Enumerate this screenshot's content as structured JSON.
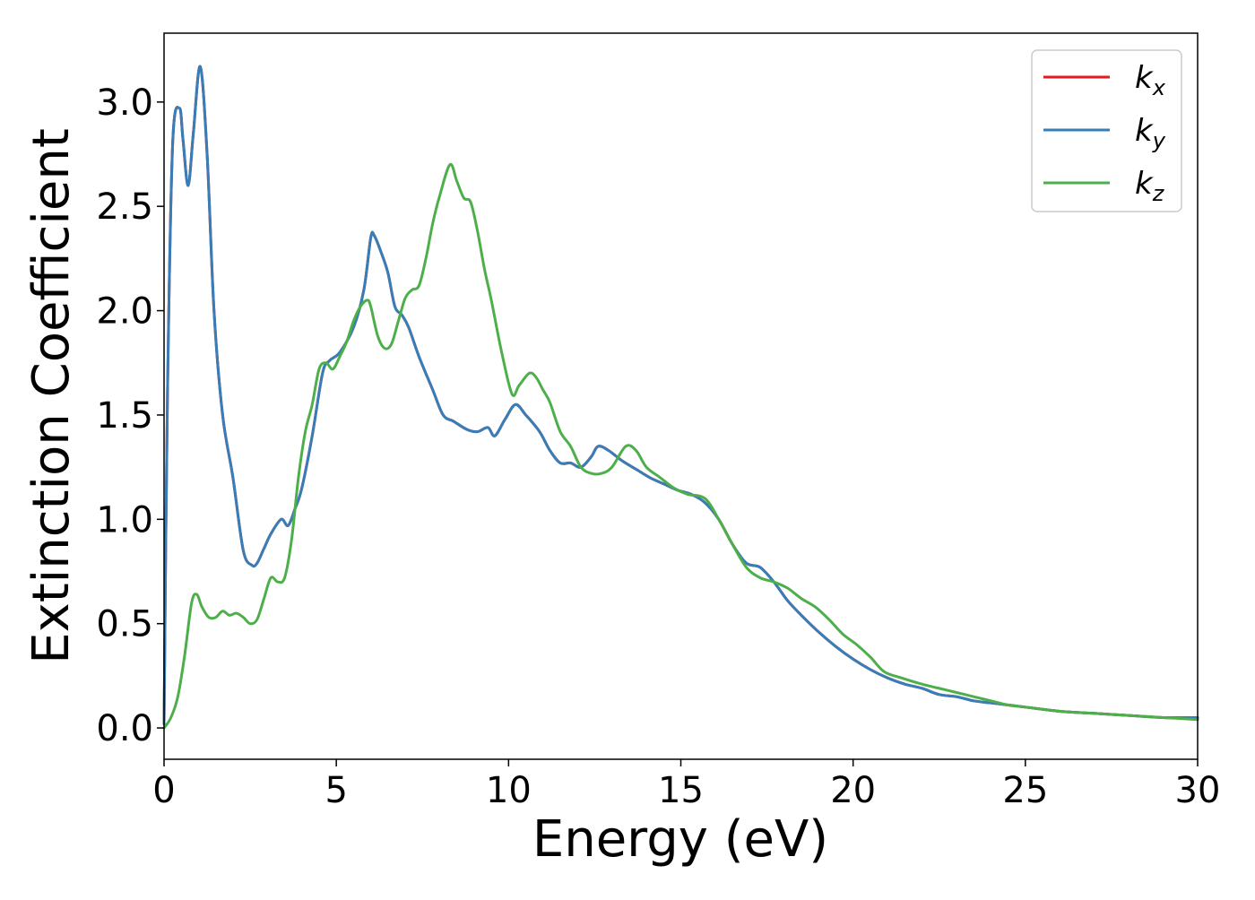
{
  "chart_data": {
    "type": "line",
    "xlabel": "Energy (eV)",
    "ylabel": "Extinction Coefficient",
    "xlim": [
      0,
      30
    ],
    "ylim": [
      -0.15,
      3.33
    ],
    "x_ticks": [
      "0",
      "5",
      "10",
      "15",
      "20",
      "25",
      "30"
    ],
    "y_ticks": [
      "0.0",
      "0.5",
      "1.0",
      "1.5",
      "2.0",
      "2.5",
      "3.0"
    ],
    "grid": false,
    "legend": {
      "position": "top-right",
      "entries": [
        {
          "base": "k",
          "sub": "x",
          "color": "#e41a1c"
        },
        {
          "base": "k",
          "sub": "y",
          "color": "#377eb8"
        },
        {
          "base": "k",
          "sub": "z",
          "color": "#4daf4a"
        }
      ]
    },
    "series": [
      {
        "name": "kx",
        "color": "#e41a1c",
        "x": [
          0,
          0.1,
          0.25,
          0.45,
          0.55,
          0.7,
          0.85,
          1.05,
          1.25,
          1.45,
          1.7,
          2.0,
          2.3,
          2.55,
          2.7,
          2.9,
          3.1,
          3.4,
          3.6,
          3.8,
          4.0,
          4.3,
          4.6,
          4.8,
          5.1,
          5.5,
          5.8,
          6.0,
          6.1,
          6.3,
          6.5,
          6.7,
          6.9,
          7.1,
          7.4,
          7.8,
          8.1,
          8.4,
          8.8,
          9.1,
          9.4,
          9.6,
          9.9,
          10.2,
          10.5,
          10.9,
          11.2,
          11.5,
          11.8,
          12.1,
          12.4,
          12.6,
          12.9,
          13.3,
          13.7,
          14.1,
          14.5,
          14.9,
          15.3,
          15.7,
          16.1,
          16.5,
          16.9,
          17.3,
          17.7,
          18.1,
          18.5,
          19.0,
          19.5,
          20.0,
          20.5,
          21.0,
          21.5,
          22.0,
          22.5,
          23.0,
          23.5,
          24.0,
          24.5,
          25.0,
          26.0,
          27.0,
          28.0,
          29.0,
          30.0
        ],
        "y": [
          0.02,
          1.6,
          2.8,
          2.97,
          2.82,
          2.6,
          2.85,
          3.17,
          2.75,
          2.0,
          1.5,
          1.2,
          0.85,
          0.78,
          0.79,
          0.86,
          0.93,
          1.0,
          0.97,
          1.05,
          1.15,
          1.4,
          1.7,
          1.76,
          1.8,
          1.92,
          2.1,
          2.35,
          2.36,
          2.28,
          2.18,
          2.02,
          1.98,
          1.92,
          1.78,
          1.62,
          1.5,
          1.47,
          1.43,
          1.42,
          1.44,
          1.4,
          1.48,
          1.55,
          1.5,
          1.42,
          1.33,
          1.27,
          1.27,
          1.25,
          1.3,
          1.35,
          1.33,
          1.28,
          1.24,
          1.2,
          1.17,
          1.14,
          1.12,
          1.08,
          1.0,
          0.88,
          0.79,
          0.77,
          0.7,
          0.61,
          0.54,
          0.46,
          0.39,
          0.33,
          0.28,
          0.24,
          0.21,
          0.19,
          0.16,
          0.15,
          0.13,
          0.12,
          0.11,
          0.1,
          0.08,
          0.07,
          0.06,
          0.05,
          0.05
        ]
      },
      {
        "name": "ky",
        "color": "#377eb8",
        "x": [
          0,
          0.1,
          0.25,
          0.45,
          0.55,
          0.7,
          0.85,
          1.05,
          1.25,
          1.45,
          1.7,
          2.0,
          2.3,
          2.55,
          2.7,
          2.9,
          3.1,
          3.4,
          3.6,
          3.8,
          4.0,
          4.3,
          4.6,
          4.8,
          5.1,
          5.5,
          5.8,
          6.0,
          6.1,
          6.3,
          6.5,
          6.7,
          6.9,
          7.1,
          7.4,
          7.8,
          8.1,
          8.4,
          8.8,
          9.1,
          9.4,
          9.6,
          9.9,
          10.2,
          10.5,
          10.9,
          11.2,
          11.5,
          11.8,
          12.1,
          12.4,
          12.6,
          12.9,
          13.3,
          13.7,
          14.1,
          14.5,
          14.9,
          15.3,
          15.7,
          16.1,
          16.5,
          16.9,
          17.3,
          17.7,
          18.1,
          18.5,
          19.0,
          19.5,
          20.0,
          20.5,
          21.0,
          21.5,
          22.0,
          22.5,
          23.0,
          23.5,
          24.0,
          24.5,
          25.0,
          26.0,
          27.0,
          28.0,
          29.0,
          30.0
        ],
        "y": [
          0.02,
          1.6,
          2.8,
          2.97,
          2.82,
          2.6,
          2.85,
          3.17,
          2.75,
          2.0,
          1.5,
          1.2,
          0.85,
          0.78,
          0.79,
          0.86,
          0.93,
          1.0,
          0.97,
          1.05,
          1.15,
          1.4,
          1.7,
          1.76,
          1.8,
          1.92,
          2.1,
          2.35,
          2.36,
          2.28,
          2.18,
          2.02,
          1.98,
          1.92,
          1.78,
          1.62,
          1.5,
          1.47,
          1.43,
          1.42,
          1.44,
          1.4,
          1.48,
          1.55,
          1.5,
          1.42,
          1.33,
          1.27,
          1.27,
          1.25,
          1.3,
          1.35,
          1.33,
          1.28,
          1.24,
          1.2,
          1.17,
          1.14,
          1.12,
          1.08,
          1.0,
          0.88,
          0.79,
          0.77,
          0.7,
          0.61,
          0.54,
          0.46,
          0.39,
          0.33,
          0.28,
          0.24,
          0.21,
          0.19,
          0.16,
          0.15,
          0.13,
          0.12,
          0.11,
          0.1,
          0.08,
          0.07,
          0.06,
          0.05,
          0.05
        ]
      },
      {
        "name": "kz",
        "color": "#4daf4a",
        "x": [
          0,
          0.2,
          0.4,
          0.6,
          0.8,
          0.95,
          1.1,
          1.3,
          1.5,
          1.7,
          1.9,
          2.1,
          2.3,
          2.5,
          2.7,
          2.9,
          3.1,
          3.3,
          3.5,
          3.7,
          3.9,
          4.1,
          4.3,
          4.5,
          4.7,
          4.9,
          5.1,
          5.3,
          5.5,
          5.7,
          5.9,
          6.0,
          6.2,
          6.4,
          6.6,
          6.8,
          7.0,
          7.2,
          7.4,
          7.6,
          7.8,
          8.0,
          8.3,
          8.5,
          8.7,
          8.9,
          9.1,
          9.3,
          9.5,
          9.8,
          10.1,
          10.3,
          10.6,
          10.8,
          11.0,
          11.2,
          11.5,
          11.8,
          12.1,
          12.4,
          12.7,
          13.0,
          13.4,
          13.7,
          14.0,
          14.4,
          14.8,
          15.2,
          15.7,
          16.1,
          16.5,
          16.9,
          17.3,
          17.7,
          18.1,
          18.5,
          18.9,
          19.3,
          19.7,
          20.1,
          20.5,
          20.9,
          21.4,
          22.0,
          22.5,
          23.0,
          23.5,
          24.0,
          24.5,
          25.0,
          26.0,
          27.0,
          28.0,
          29.0,
          30.0
        ],
        "y": [
          0.0,
          0.05,
          0.15,
          0.35,
          0.6,
          0.64,
          0.58,
          0.53,
          0.53,
          0.56,
          0.54,
          0.55,
          0.53,
          0.5,
          0.52,
          0.62,
          0.72,
          0.7,
          0.72,
          0.9,
          1.2,
          1.42,
          1.55,
          1.72,
          1.75,
          1.72,
          1.78,
          1.85,
          1.95,
          2.02,
          2.05,
          2.02,
          1.88,
          1.82,
          1.84,
          1.95,
          2.06,
          2.1,
          2.12,
          2.25,
          2.42,
          2.55,
          2.7,
          2.62,
          2.54,
          2.52,
          2.38,
          2.2,
          2.05,
          1.8,
          1.6,
          1.64,
          1.7,
          1.68,
          1.62,
          1.56,
          1.42,
          1.35,
          1.25,
          1.22,
          1.22,
          1.25,
          1.35,
          1.33,
          1.25,
          1.2,
          1.15,
          1.12,
          1.1,
          1.0,
          0.88,
          0.77,
          0.72,
          0.7,
          0.67,
          0.62,
          0.58,
          0.52,
          0.45,
          0.4,
          0.34,
          0.27,
          0.24,
          0.21,
          0.19,
          0.17,
          0.15,
          0.13,
          0.11,
          0.1,
          0.08,
          0.07,
          0.06,
          0.05,
          0.04
        ]
      }
    ]
  }
}
